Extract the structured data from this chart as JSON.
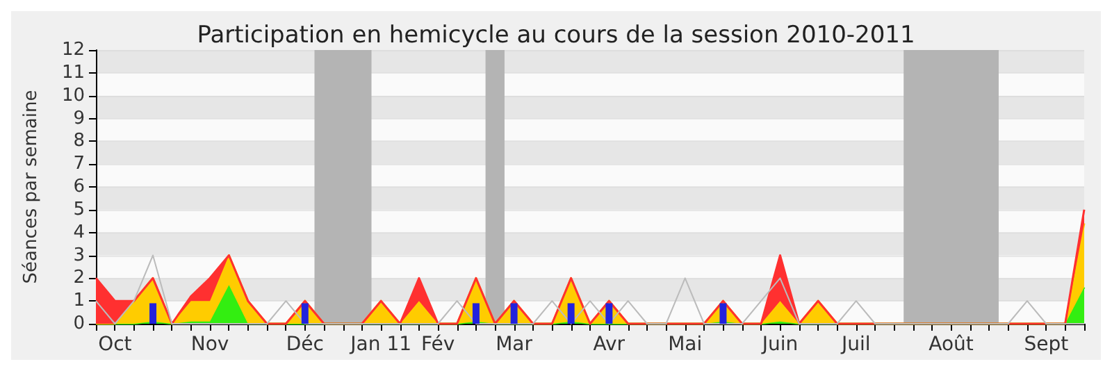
{
  "chart_data": {
    "type": "area",
    "title": "Participation en hemicycle au cours de la session 2010-2011",
    "ylabel": "Séances par semaine",
    "stacked": true,
    "marker": "none",
    "grid": "y",
    "categories": [
      null,
      "Oct",
      null,
      null,
      null,
      null,
      "Nov",
      null,
      null,
      null,
      null,
      "Déc",
      null,
      null,
      null,
      "Jan 11",
      null,
      null,
      "Fév",
      null,
      null,
      null,
      "Mar",
      null,
      null,
      null,
      null,
      "Avr",
      null,
      null,
      null,
      "Mai",
      null,
      null,
      null,
      null,
      "Juin",
      null,
      null,
      null,
      "Juil",
      null,
      null,
      null,
      null,
      "Août",
      null,
      null,
      null,
      null,
      "Sept",
      null,
      null
    ],
    "ylim": [
      0,
      12
    ],
    "yticks": [
      0,
      1,
      2,
      3,
      4,
      5,
      6,
      7,
      8,
      9,
      10,
      11,
      12
    ],
    "series": [
      {
        "color": "#33ee11",
        "values": [
          0,
          0,
          0,
          0.1,
          0,
          0.1,
          0.1,
          1.7,
          0,
          0,
          0,
          0,
          0,
          0,
          0,
          0,
          0,
          0,
          0,
          0,
          0.1,
          0,
          0,
          0,
          0,
          0.1,
          0,
          0,
          0,
          0,
          0,
          0,
          0,
          0.1,
          0,
          0,
          0.1,
          0,
          0,
          0,
          0,
          0,
          0,
          0,
          0,
          0,
          0,
          0,
          0,
          0,
          0,
          0,
          1.6
        ]
      },
      {
        "color": "#ffcc00",
        "values": [
          0,
          0,
          1,
          1.9,
          0,
          0.9,
          0.9,
          1.3,
          1,
          0,
          0,
          1,
          0,
          0,
          0,
          1,
          0,
          1,
          0,
          0,
          1.9,
          0,
          1,
          0,
          0,
          1.9,
          0,
          1,
          0,
          0,
          0,
          0,
          0,
          0.9,
          0,
          0,
          0.9,
          0,
          1,
          0,
          0,
          0,
          0,
          0,
          0,
          0,
          0,
          0,
          0,
          0,
          0,
          0,
          2.8
        ]
      },
      {
        "color": "#ff3030",
        "values": [
          2,
          1,
          0,
          0,
          0,
          0.2,
          1,
          0,
          0,
          0,
          0,
          0,
          0,
          0,
          0,
          0,
          0,
          1,
          0,
          0,
          0,
          0,
          0,
          0,
          0,
          0,
          0,
          0,
          0,
          0,
          0,
          0,
          0,
          0,
          0,
          0,
          2,
          0,
          0,
          0,
          0,
          0,
          0,
          0,
          0,
          0,
          0,
          0,
          0,
          0,
          0,
          0,
          0.6
        ]
      },
      {
        "type": "line",
        "color": "#bbbbbb",
        "values": [
          1,
          0,
          1,
          3,
          0,
          0,
          0,
          0,
          0,
          0,
          1,
          0,
          0,
          0,
          0,
          0,
          0,
          0,
          0,
          1,
          0,
          0,
          0,
          0,
          1,
          0,
          1,
          0,
          1,
          0,
          0,
          2,
          0,
          0,
          0,
          1,
          2,
          0,
          0,
          0,
          1,
          0,
          0,
          0,
          0,
          0,
          0,
          0,
          0,
          1,
          0,
          0,
          0
        ]
      },
      {
        "type": "bar",
        "color": "#2222dd",
        "values": [
          null,
          null,
          null,
          0.9,
          null,
          null,
          null,
          null,
          null,
          null,
          null,
          0.9,
          null,
          null,
          null,
          null,
          null,
          null,
          null,
          null,
          0.9,
          null,
          0.9,
          null,
          null,
          0.9,
          null,
          0.9,
          null,
          null,
          null,
          null,
          null,
          0.9,
          null,
          null,
          null,
          null,
          null,
          null,
          null,
          null,
          null,
          null,
          null,
          null,
          null,
          null,
          null,
          null,
          null,
          null,
          null
        ]
      }
    ]
  }
}
